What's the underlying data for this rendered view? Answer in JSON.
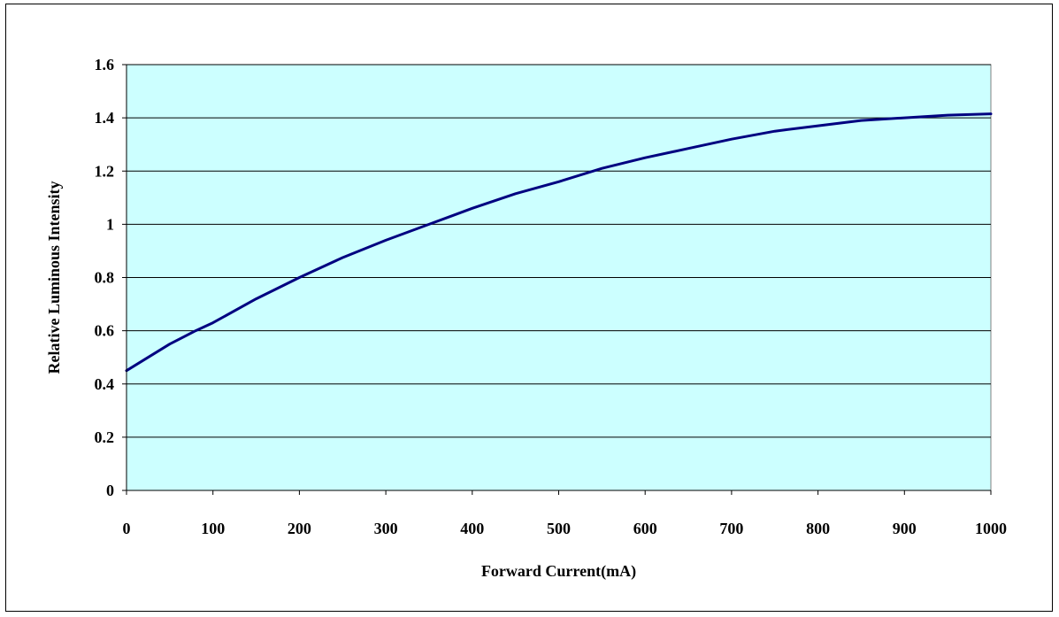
{
  "chart_data": {
    "type": "line",
    "title": "",
    "xlabel": "Forward Current(mA)",
    "ylabel": "Relative Luminous Intensity",
    "xlim": [
      0,
      1000
    ],
    "ylim": [
      0,
      1.6
    ],
    "x_ticks": [
      "0",
      "100",
      "200",
      "300",
      "400",
      "500",
      "600",
      "700",
      "800",
      "900",
      "1000"
    ],
    "y_ticks": [
      "0",
      "0.2",
      "0.4",
      "0.6",
      "0.8",
      "1",
      "1.2",
      "1.4",
      "1.6"
    ],
    "grid": "horizontal",
    "plot_background": "#ccffff",
    "line_color": "#000080",
    "series": [
      {
        "x": [
          0,
          20,
          50,
          80,
          100,
          150,
          200,
          250,
          300,
          350,
          400,
          450,
          500,
          550,
          600,
          650,
          700,
          750,
          800,
          850,
          900,
          950,
          1000
        ],
        "y": [
          0.45,
          0.49,
          0.55,
          0.6,
          0.63,
          0.72,
          0.8,
          0.875,
          0.94,
          1.0,
          1.06,
          1.115,
          1.16,
          1.21,
          1.25,
          1.285,
          1.32,
          1.35,
          1.37,
          1.39,
          1.4,
          1.41,
          1.415
        ]
      }
    ]
  }
}
